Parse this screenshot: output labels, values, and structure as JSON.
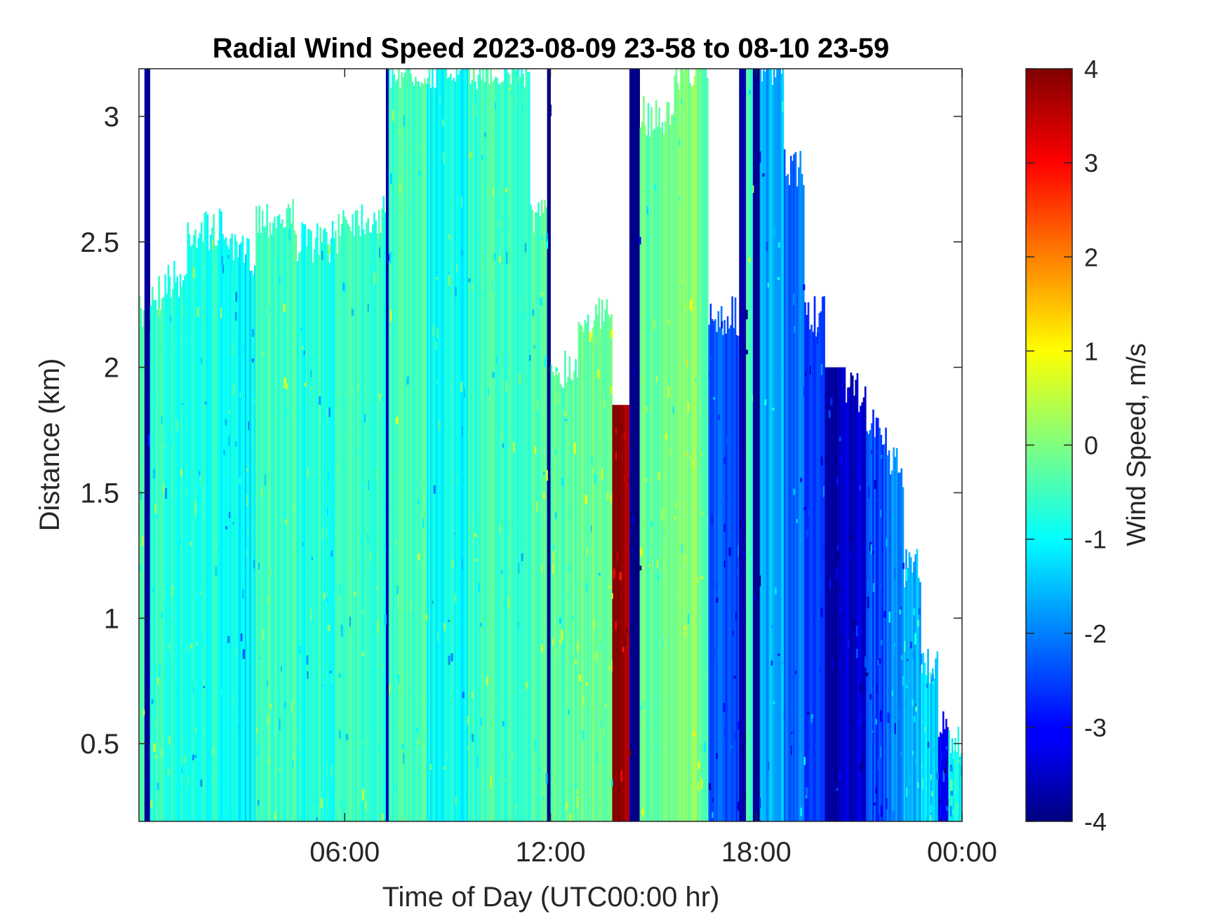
{
  "chart_data": {
    "type": "heatmap",
    "title": "Radial Wind Speed 2023-08-09 23-58 to 08-10 23-59",
    "xlabel": "Time of Day (UTC00:00 hr)",
    "ylabel": "Distance (km)",
    "x_ticks": [
      {
        "hour": 6,
        "label": "06:00"
      },
      {
        "hour": 12,
        "label": "12:00"
      },
      {
        "hour": 18,
        "label": "18:00"
      },
      {
        "hour": 24,
        "label": "00:00"
      }
    ],
    "xlim_hours": [
      0,
      24
    ],
    "y_ticks": [
      {
        "value": 0.5,
        "label": "0.5"
      },
      {
        "value": 1,
        "label": "1"
      },
      {
        "value": 1.5,
        "label": "1.5"
      },
      {
        "value": 2,
        "label": "2"
      },
      {
        "value": 2.5,
        "label": "2.5"
      },
      {
        "value": 3,
        "label": "3"
      }
    ],
    "ylim_km": [
      0.19,
      3.19
    ],
    "colorbar": {
      "label": "Wind Speed, m/s",
      "colormap": "jet",
      "range": [
        -4,
        4
      ],
      "ticks": [
        {
          "value": 4,
          "label": "4"
        },
        {
          "value": 3,
          "label": "3"
        },
        {
          "value": 2,
          "label": "2"
        },
        {
          "value": 1,
          "label": "1"
        },
        {
          "value": 0,
          "label": "0"
        },
        {
          "value": -1,
          "label": "-1"
        },
        {
          "value": -2,
          "label": "-2"
        },
        {
          "value": -3,
          "label": "-3"
        },
        {
          "value": -4,
          "label": "-4"
        }
      ]
    },
    "segments": [
      {
        "t0": 0.0,
        "t1": 0.16,
        "top_km": 2.2,
        "speed": -0.4
      },
      {
        "t0": 0.16,
        "t1": 0.32,
        "top_km": 3.19,
        "speed": -3.9
      },
      {
        "t0": 0.32,
        "t1": 0.7,
        "top_km": 2.3,
        "speed": -0.6
      },
      {
        "t0": 0.7,
        "t1": 1.4,
        "top_km": 2.35,
        "speed": -0.7
      },
      {
        "t0": 1.4,
        "t1": 2.6,
        "top_km": 2.55,
        "speed": -0.8
      },
      {
        "t0": 2.6,
        "t1": 3.4,
        "top_km": 2.45,
        "speed": -1.1
      },
      {
        "t0": 3.4,
        "t1": 4.6,
        "top_km": 2.6,
        "speed": -0.5
      },
      {
        "t0": 4.6,
        "t1": 5.8,
        "top_km": 2.5,
        "speed": -0.7
      },
      {
        "t0": 5.8,
        "t1": 7.2,
        "top_km": 2.6,
        "speed": -0.6
      },
      {
        "t0": 7.2,
        "t1": 7.28,
        "top_km": 3.19,
        "speed": -3.9
      },
      {
        "t0": 7.28,
        "t1": 8.4,
        "top_km": 3.19,
        "speed": -0.4
      },
      {
        "t0": 8.4,
        "t1": 9.6,
        "top_km": 3.19,
        "speed": -0.9
      },
      {
        "t0": 9.6,
        "t1": 10.6,
        "top_km": 3.19,
        "speed": -0.5
      },
      {
        "t0": 10.6,
        "t1": 11.4,
        "top_km": 3.19,
        "speed": -0.6
      },
      {
        "t0": 11.4,
        "t1": 11.9,
        "top_km": 2.6,
        "speed": -0.3
      },
      {
        "t0": 11.9,
        "t1": 12.0,
        "top_km": 3.19,
        "speed": -3.9
      },
      {
        "t0": 12.0,
        "t1": 12.8,
        "top_km": 2.0,
        "speed": -0.3
      },
      {
        "t0": 12.8,
        "t1": 13.8,
        "top_km": 2.2,
        "speed": -0.2
      },
      {
        "t0": 13.8,
        "t1": 14.3,
        "top_km": 1.85,
        "speed": 3.8
      },
      {
        "t0": 14.3,
        "t1": 14.6,
        "top_km": 3.19,
        "speed": -3.9
      },
      {
        "t0": 14.6,
        "t1": 15.6,
        "top_km": 3.0,
        "speed": -0.2
      },
      {
        "t0": 15.6,
        "t1": 16.4,
        "top_km": 3.19,
        "speed": 0.1
      },
      {
        "t0": 16.4,
        "t1": 16.6,
        "top_km": 3.19,
        "speed": -0.4
      },
      {
        "t0": 16.6,
        "t1": 17.5,
        "top_km": 2.2,
        "speed": -2.4
      },
      {
        "t0": 17.5,
        "t1": 17.7,
        "top_km": 3.19,
        "speed": -3.9
      },
      {
        "t0": 17.7,
        "t1": 17.9,
        "top_km": 3.19,
        "speed": -0.5
      },
      {
        "t0": 17.9,
        "t1": 18.1,
        "top_km": 3.19,
        "speed": -3.7
      },
      {
        "t0": 18.1,
        "t1": 18.8,
        "top_km": 3.19,
        "speed": -1.6
      },
      {
        "t0": 18.8,
        "t1": 19.4,
        "top_km": 2.8,
        "speed": -2.1
      },
      {
        "t0": 19.4,
        "t1": 20.0,
        "top_km": 2.2,
        "speed": -2.6
      },
      {
        "t0": 20.0,
        "t1": 20.6,
        "top_km": 2.0,
        "speed": -3.6
      },
      {
        "t0": 20.6,
        "t1": 21.2,
        "top_km": 1.9,
        "speed": -3.4
      },
      {
        "t0": 21.2,
        "t1": 21.8,
        "top_km": 1.75,
        "speed": -2.4
      },
      {
        "t0": 21.8,
        "t1": 22.3,
        "top_km": 1.6,
        "speed": -2.0
      },
      {
        "t0": 22.3,
        "t1": 22.8,
        "top_km": 1.2,
        "speed": -1.6
      },
      {
        "t0": 22.8,
        "t1": 23.3,
        "top_km": 0.8,
        "speed": -1.3
      },
      {
        "t0": 23.3,
        "t1": 23.6,
        "top_km": 0.6,
        "speed": -3.2
      },
      {
        "t0": 23.6,
        "t1": 24.0,
        "top_km": 0.5,
        "speed": -0.9
      }
    ]
  }
}
